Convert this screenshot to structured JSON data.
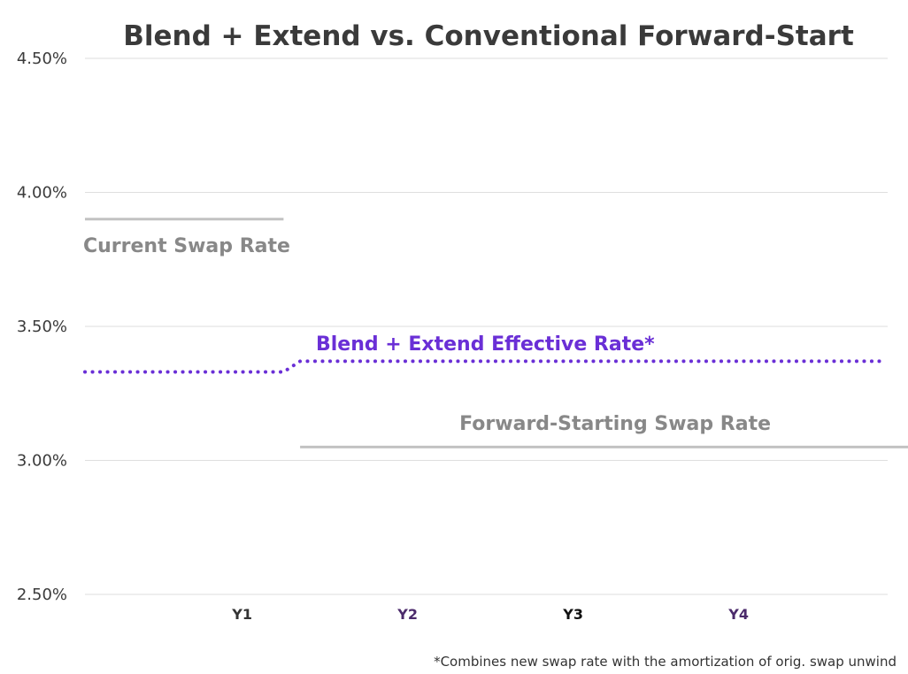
{
  "chart_data": {
    "type": "line",
    "title": "Blend + Extend vs. Conventional Forward-Start",
    "xlabel": "",
    "ylabel": "",
    "categories": [
      "Y1",
      "Y2",
      "Y3",
      "Y4"
    ],
    "category_colors": [
      "#333333",
      "#4b2a6b",
      "#111111",
      "#4b2a6b"
    ],
    "y_ticks": [
      "2.50%",
      "3.00%",
      "3.50%",
      "4.00%",
      "4.50%"
    ],
    "ylim": [
      2.5,
      4.5
    ],
    "grid": true,
    "series": [
      {
        "name": "Current Swap Rate",
        "color": "#c2c2c2",
        "label_color": "#888888",
        "style": "solid",
        "x": [
          0.0,
          1.2
        ],
        "values": [
          3.9,
          3.9
        ]
      },
      {
        "name": "Blend + Extend Effective Rate*",
        "color": "#6a2fd6",
        "label_color": "#6a2fd6",
        "style": "dotted",
        "x": [
          0.0,
          1.2,
          1.3,
          4.8
        ],
        "values": [
          3.33,
          3.33,
          3.37,
          3.37
        ]
      },
      {
        "name": "Forward-Starting Swap Rate",
        "color": "#c2c2c2",
        "label_color": "#888888",
        "style": "solid",
        "x": [
          1.3,
          5.0
        ],
        "values": [
          3.05,
          3.05
        ]
      }
    ],
    "footnote": "*Combines new swap rate with the amortization of orig. swap unwind"
  }
}
